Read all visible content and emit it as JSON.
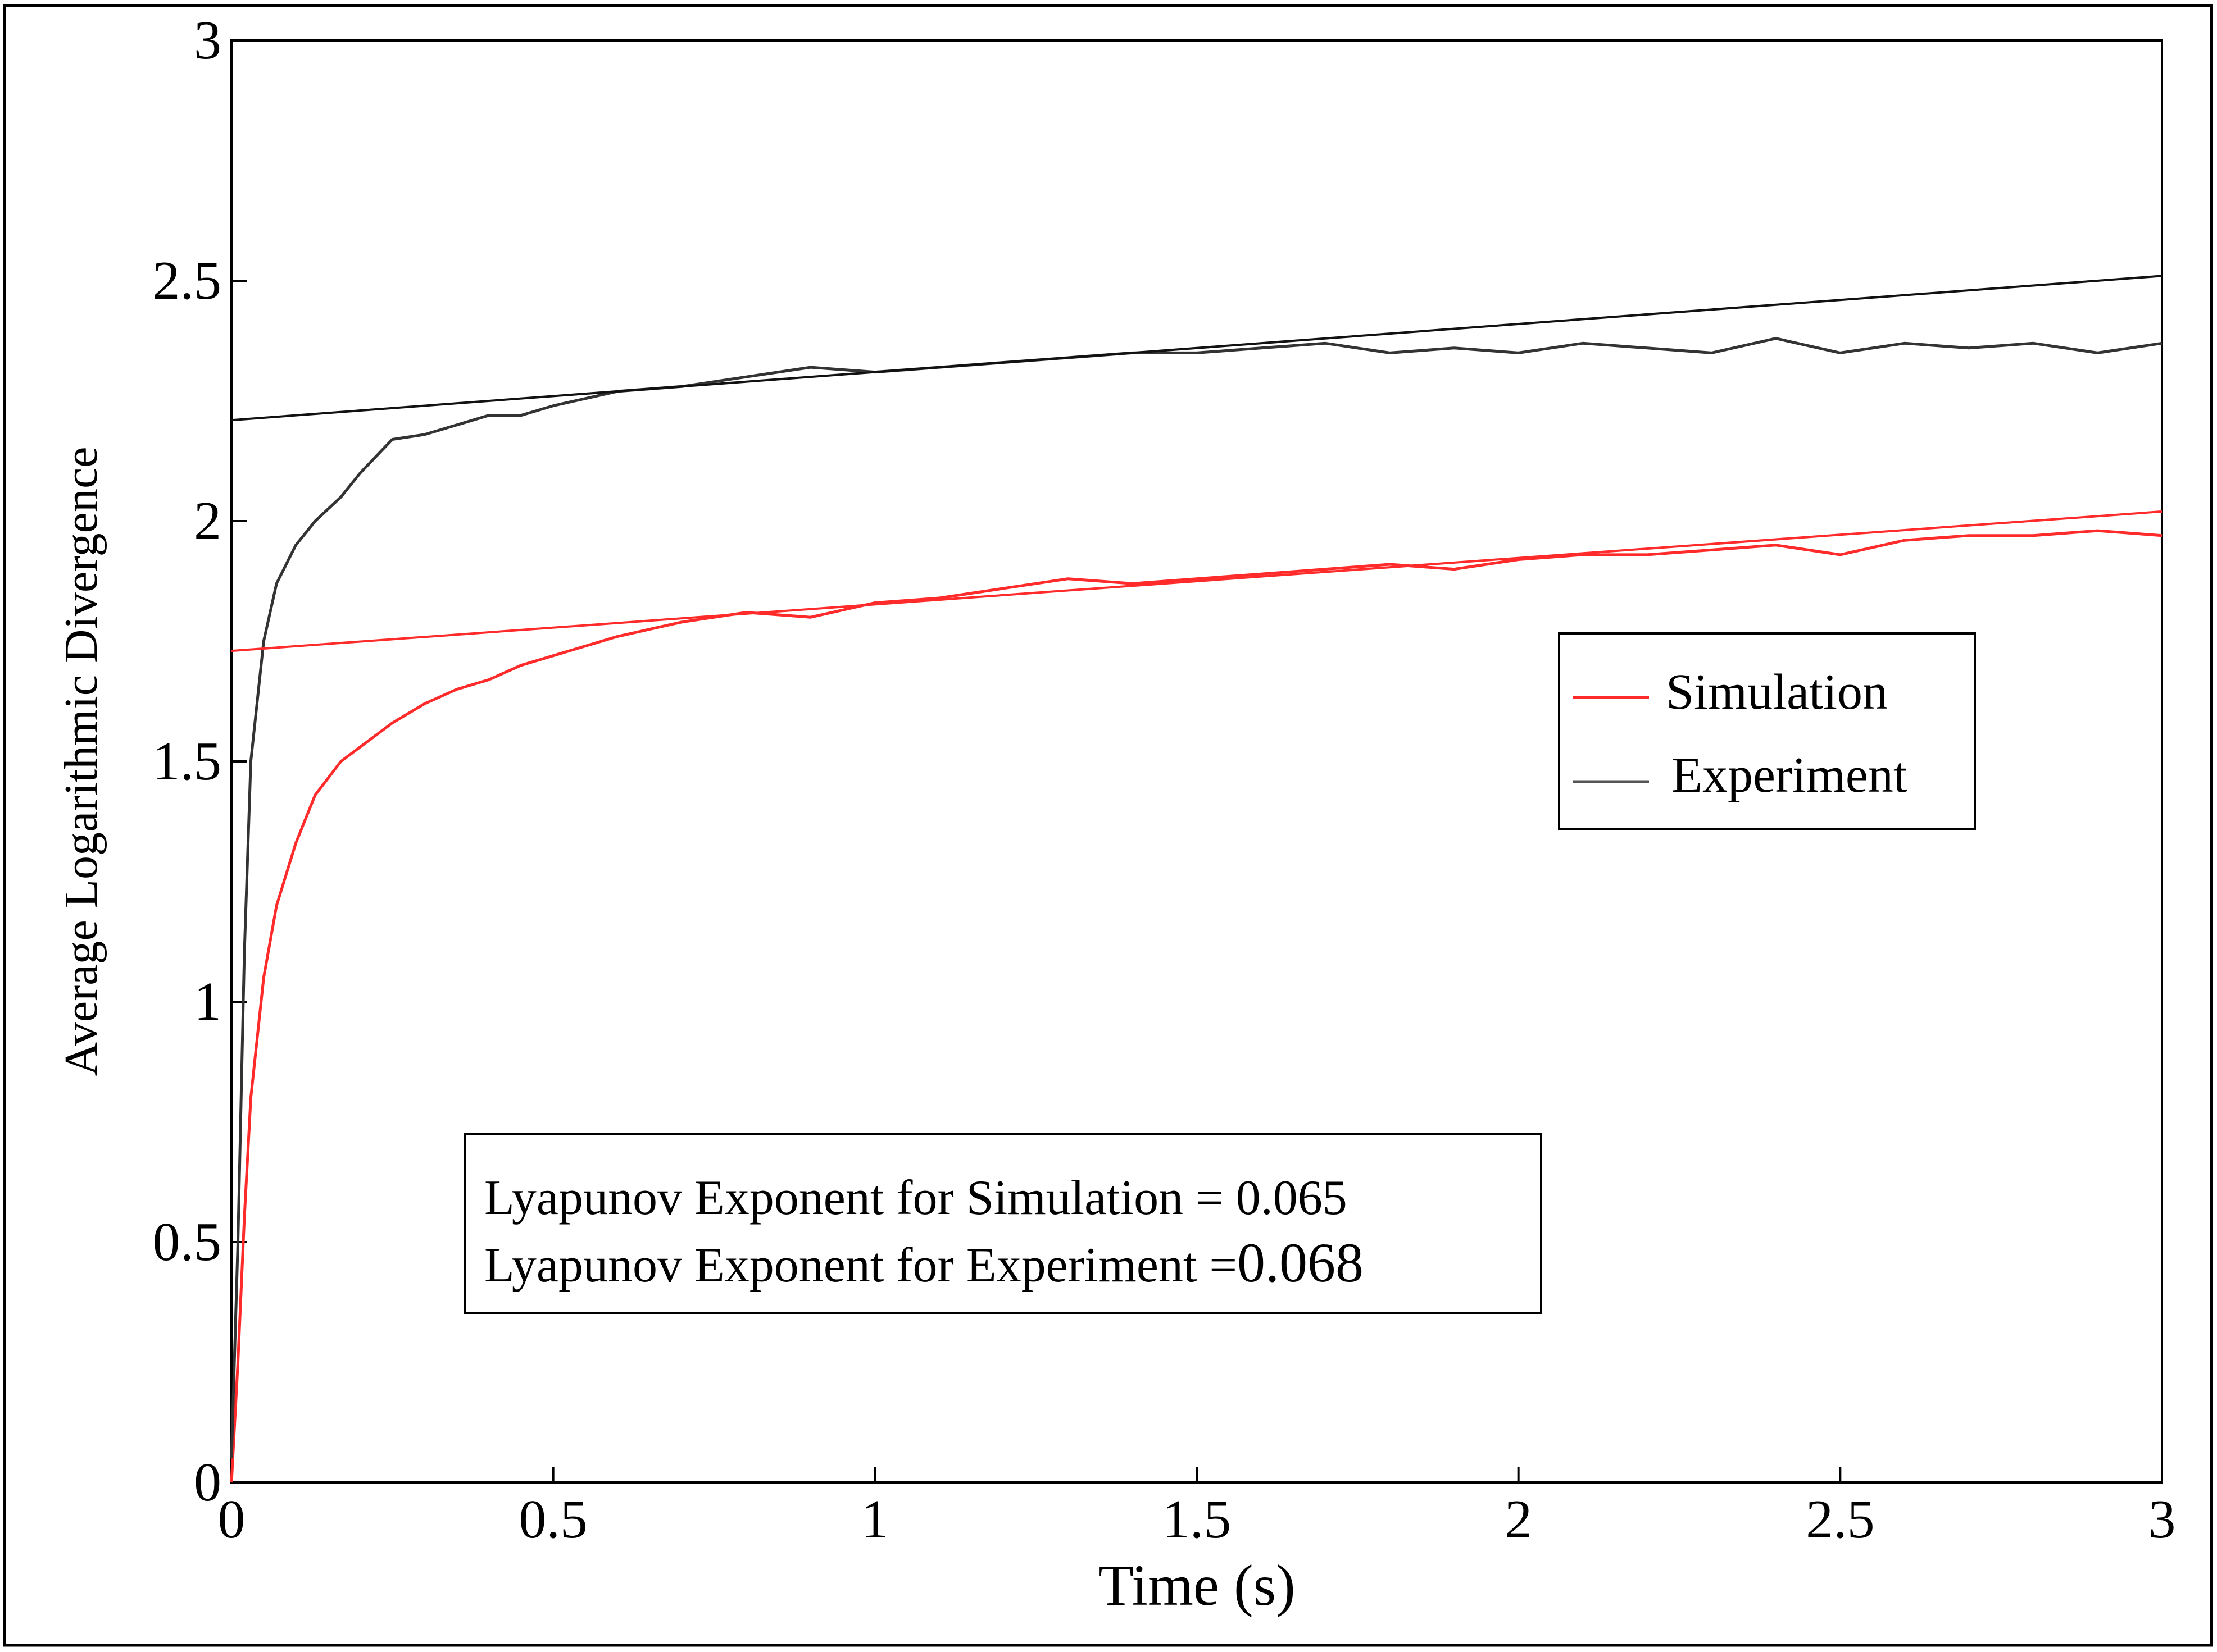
{
  "chart_data": {
    "type": "line",
    "title": "",
    "xlabel": "Time (s)",
    "ylabel": "Average Logarithmic Divergence",
    "xlim": [
      0,
      3
    ],
    "ylim": [
      0,
      3
    ],
    "x_ticks": [
      "0",
      "0.5",
      "1",
      "1.5",
      "2",
      "2.5",
      "3"
    ],
    "y_ticks": [
      "0",
      "0.5",
      "1",
      "1.5",
      "2",
      "2.5",
      "3"
    ],
    "grid": false,
    "legend": {
      "position": "middle-right",
      "entries": [
        "Simulation",
        "Experiment"
      ]
    },
    "annotation": {
      "line1": "Lyapunov Exponent for Simulation = 0.065",
      "line2_text": "Lyapunov Exponent for Experiment =",
      "line2_value": "0.068"
    },
    "series": [
      {
        "name": "Simulation",
        "color": "#ff2a2a",
        "x": [
          0.0,
          0.01,
          0.02,
          0.03,
          0.05,
          0.07,
          0.1,
          0.13,
          0.17,
          0.2,
          0.25,
          0.3,
          0.35,
          0.4,
          0.45,
          0.5,
          0.6,
          0.7,
          0.8,
          0.9,
          1.0,
          1.1,
          1.2,
          1.3,
          1.4,
          1.5,
          1.6,
          1.7,
          1.8,
          1.9,
          2.0,
          2.1,
          2.2,
          2.3,
          2.4,
          2.5,
          2.6,
          2.7,
          2.8,
          2.9,
          3.0
        ],
        "y": [
          0.0,
          0.25,
          0.55,
          0.8,
          1.05,
          1.2,
          1.33,
          1.43,
          1.5,
          1.53,
          1.58,
          1.62,
          1.65,
          1.67,
          1.7,
          1.72,
          1.76,
          1.79,
          1.81,
          1.8,
          1.83,
          1.84,
          1.86,
          1.88,
          1.87,
          1.88,
          1.89,
          1.9,
          1.91,
          1.9,
          1.92,
          1.93,
          1.93,
          1.94,
          1.95,
          1.93,
          1.96,
          1.97,
          1.97,
          1.98,
          1.97
        ]
      },
      {
        "name": "Experiment",
        "color": "#333333",
        "x": [
          0.0,
          0.01,
          0.02,
          0.03,
          0.05,
          0.07,
          0.1,
          0.13,
          0.17,
          0.2,
          0.25,
          0.3,
          0.35,
          0.4,
          0.45,
          0.5,
          0.6,
          0.7,
          0.8,
          0.9,
          1.0,
          1.1,
          1.2,
          1.3,
          1.4,
          1.5,
          1.6,
          1.7,
          1.8,
          1.9,
          2.0,
          2.1,
          2.2,
          2.3,
          2.4,
          2.5,
          2.6,
          2.7,
          2.8,
          2.9,
          3.0
        ],
        "y": [
          0.05,
          0.5,
          1.1,
          1.5,
          1.75,
          1.87,
          1.95,
          2.0,
          2.05,
          2.1,
          2.17,
          2.18,
          2.2,
          2.22,
          2.22,
          2.24,
          2.27,
          2.28,
          2.3,
          2.32,
          2.31,
          2.32,
          2.33,
          2.34,
          2.35,
          2.35,
          2.36,
          2.37,
          2.35,
          2.36,
          2.35,
          2.37,
          2.36,
          2.35,
          2.38,
          2.35,
          2.37,
          2.36,
          2.37,
          2.35,
          2.37
        ]
      },
      {
        "name": "Simulation fit",
        "color": "#ff2a2a",
        "x": [
          0,
          3
        ],
        "y": [
          1.73,
          2.02
        ]
      },
      {
        "name": "Experiment fit",
        "color": "#111111",
        "x": [
          0,
          3
        ],
        "y": [
          2.21,
          2.51
        ]
      }
    ]
  }
}
